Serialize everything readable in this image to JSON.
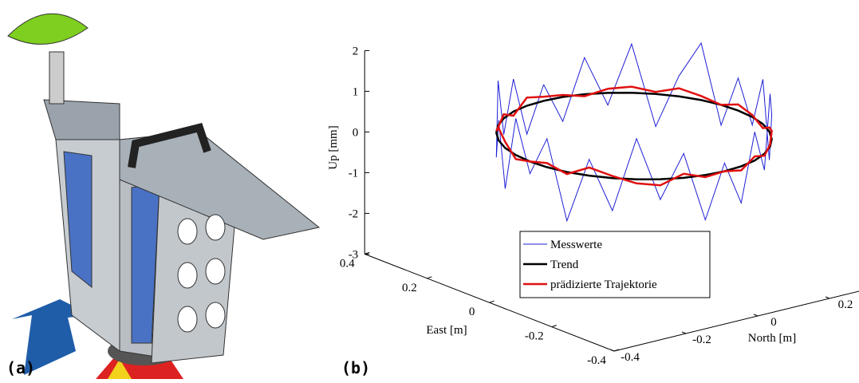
{
  "labels": {
    "a": "(a)",
    "b": "(b)"
  },
  "chart_data": {
    "type": "line3d",
    "xlabel": "East [m]",
    "ylabel": "North [m]",
    "zlabel": "Up [mm]",
    "xlim": [
      -0.4,
      0.4
    ],
    "ylim": [
      -0.4,
      0.35
    ],
    "zlim": [
      -3,
      2
    ],
    "xticks": [
      -0.4,
      -0.2,
      0,
      0.2,
      0.4
    ],
    "yticks": [
      -0.4,
      -0.2,
      0,
      0.2
    ],
    "zticks": [
      -3,
      -2,
      -1,
      0,
      1,
      2
    ],
    "x": [
      0.336,
      0.332,
      0.319,
      0.297,
      0.268,
      0.232,
      0.191,
      0.145,
      0.096,
      0.046,
      -0.004,
      -0.053,
      -0.099,
      -0.14,
      -0.176,
      -0.205,
      -0.227,
      -0.24,
      -0.244,
      -0.24,
      -0.227,
      -0.205,
      -0.176,
      -0.14,
      -0.099,
      -0.053,
      -0.004,
      0.046,
      0.096,
      0.145,
      0.191,
      0.232,
      0.268,
      0.297,
      0.319,
      0.332,
      0.336
    ],
    "y": [
      0.043,
      0.093,
      0.142,
      0.188,
      0.229,
      0.265,
      0.294,
      0.316,
      0.329,
      0.333,
      0.329,
      0.316,
      0.294,
      0.265,
      0.229,
      0.188,
      0.142,
      0.093,
      0.043,
      -0.007,
      -0.056,
      -0.102,
      -0.143,
      -0.179,
      -0.208,
      -0.23,
      -0.243,
      -0.247,
      -0.243,
      -0.23,
      -0.208,
      -0.179,
      -0.143,
      -0.102,
      -0.056,
      -0.007,
      0.043
    ],
    "legend": "bottom",
    "series": [
      {
        "name": "Messwerte",
        "color": "#1f1fd6",
        "width": 1,
        "values": [
          0.4,
          -0.6,
          0.9,
          -0.3,
          1.2,
          -0.8,
          0.5,
          1.4,
          -0.5,
          0.8,
          -0.2,
          1.1,
          -0.7,
          0.6,
          1.3,
          -0.4,
          0.7,
          -0.9,
          0.2,
          -1.1,
          0.6,
          -0.5,
          1.0,
          -0.8,
          0.4,
          -1.2,
          0.7,
          -0.3,
          0.9,
          -1.0,
          0.5,
          -0.6,
          1.1,
          -0.4,
          0.8,
          -0.7,
          0.4
        ]
      },
      {
        "name": "Trend",
        "color": "#000000",
        "width": 2.5,
        "values": [
          0,
          0,
          0,
          0,
          0,
          0,
          0,
          0,
          0,
          0,
          0,
          0,
          0,
          0,
          0,
          0,
          0,
          0,
          0,
          0,
          0,
          0,
          0,
          0,
          0,
          0,
          0,
          0,
          0,
          0,
          0,
          0,
          0,
          0,
          0,
          0,
          0
        ]
      },
      {
        "name": "prädizierte Trajektorie",
        "color": "#e01010",
        "width": 2.5,
        "values": [
          0.1,
          0.05,
          -0.05,
          0.1,
          0.15,
          0.05,
          0.2,
          0.1,
          0,
          0.15,
          0.05,
          -0.1,
          0.1,
          0.2,
          0.05,
          -0.05,
          0.1,
          -0.1,
          0,
          -0.05,
          0.1,
          -0.15,
          -0.1,
          0.05,
          0.2,
          -0.05,
          0.1,
          0,
          -0.1,
          0.15,
          0.3,
          0.05,
          -0.05,
          0.1,
          -0.1,
          0.2,
          0.1
        ]
      }
    ]
  }
}
